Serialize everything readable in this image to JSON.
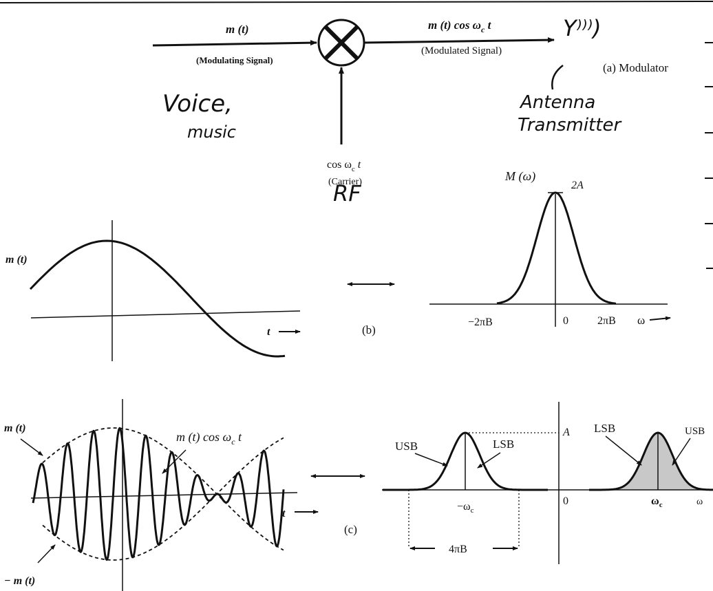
{
  "modulator": {
    "input_label": "m (t)",
    "input_desc": "(Modulating Signal)",
    "output_label": "m (t) cos ω",
    "output_sub": "c",
    "output_t": " t",
    "output_desc": "(Modulated Signal)",
    "caption": "(a) Modulator",
    "carrier_label": "cos ω",
    "carrier_sub": "c",
    "carrier_t": " t",
    "carrier_desc": "(Carrier)"
  },
  "handwritten": {
    "voice": "Voice,",
    "music": "music",
    "antenna": "Antenna",
    "transmitter": "Transmitter",
    "rf": "RF",
    "antenna_symbol": "Y⁾⁾⁾)"
  },
  "panel_b": {
    "signal_label": "m (t)",
    "t_label": "t",
    "caption": "(b)",
    "spectrum_label": "M (ω)",
    "peak_label": "2A",
    "tick_neg": "−2πB",
    "tick_zero": "0",
    "tick_pos": "2πB",
    "omega_label": "ω"
  },
  "panel_c": {
    "upper_env": "m (t)",
    "lower_env": "− m (t)",
    "mod_label": "m (t) cos ω",
    "mod_sub": "c",
    "mod_t": " t",
    "t_label": "t",
    "caption": "(c)",
    "usb_left": "USB",
    "lsb_left": "LSB",
    "lsb_right": "LSB",
    "usb_right": "USB",
    "amp_label": "A",
    "tick_neg": "−ω",
    "tick_neg_sub": "c",
    "tick_zero": "0",
    "tick_pos": "ω",
    "tick_pos_sub": "c",
    "omega_label": "ω",
    "bandwidth": "4πB"
  },
  "colors": {
    "ink": "#111111",
    "shade": "#c8c8c8"
  }
}
